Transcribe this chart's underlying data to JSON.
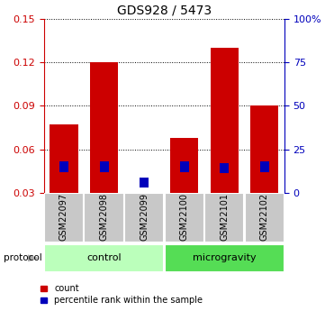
{
  "title": "GDS928 / 5473",
  "samples": [
    "GSM22097",
    "GSM22098",
    "GSM22099",
    "GSM22100",
    "GSM22101",
    "GSM22102"
  ],
  "red_values": [
    0.077,
    0.12,
    0.03,
    0.068,
    0.13,
    0.09
  ],
  "blue_values": [
    0.048,
    0.048,
    0.037,
    0.048,
    0.047,
    0.048
  ],
  "ylim": [
    0.03,
    0.15
  ],
  "yticks": [
    0.03,
    0.06,
    0.09,
    0.12,
    0.15
  ],
  "yticks_right_labels": [
    "0",
    "25",
    "50",
    "75",
    "100%"
  ],
  "bar_width": 0.7,
  "baseline": 0.03,
  "protocol_groups": [
    {
      "label": "control",
      "indices": [
        0,
        1,
        2
      ],
      "color": "#bbffbb"
    },
    {
      "label": "microgravity",
      "indices": [
        3,
        4,
        5
      ],
      "color": "#55dd55"
    }
  ],
  "red_color": "#cc0000",
  "blue_color": "#0000bb",
  "bg_label_row": "#c8c8c8",
  "legend_count": "count",
  "legend_percentile": "percentile rank within the sample",
  "title_fontsize": 10,
  "tick_fontsize": 8,
  "label_fontsize": 7,
  "protocol_fontsize": 8
}
